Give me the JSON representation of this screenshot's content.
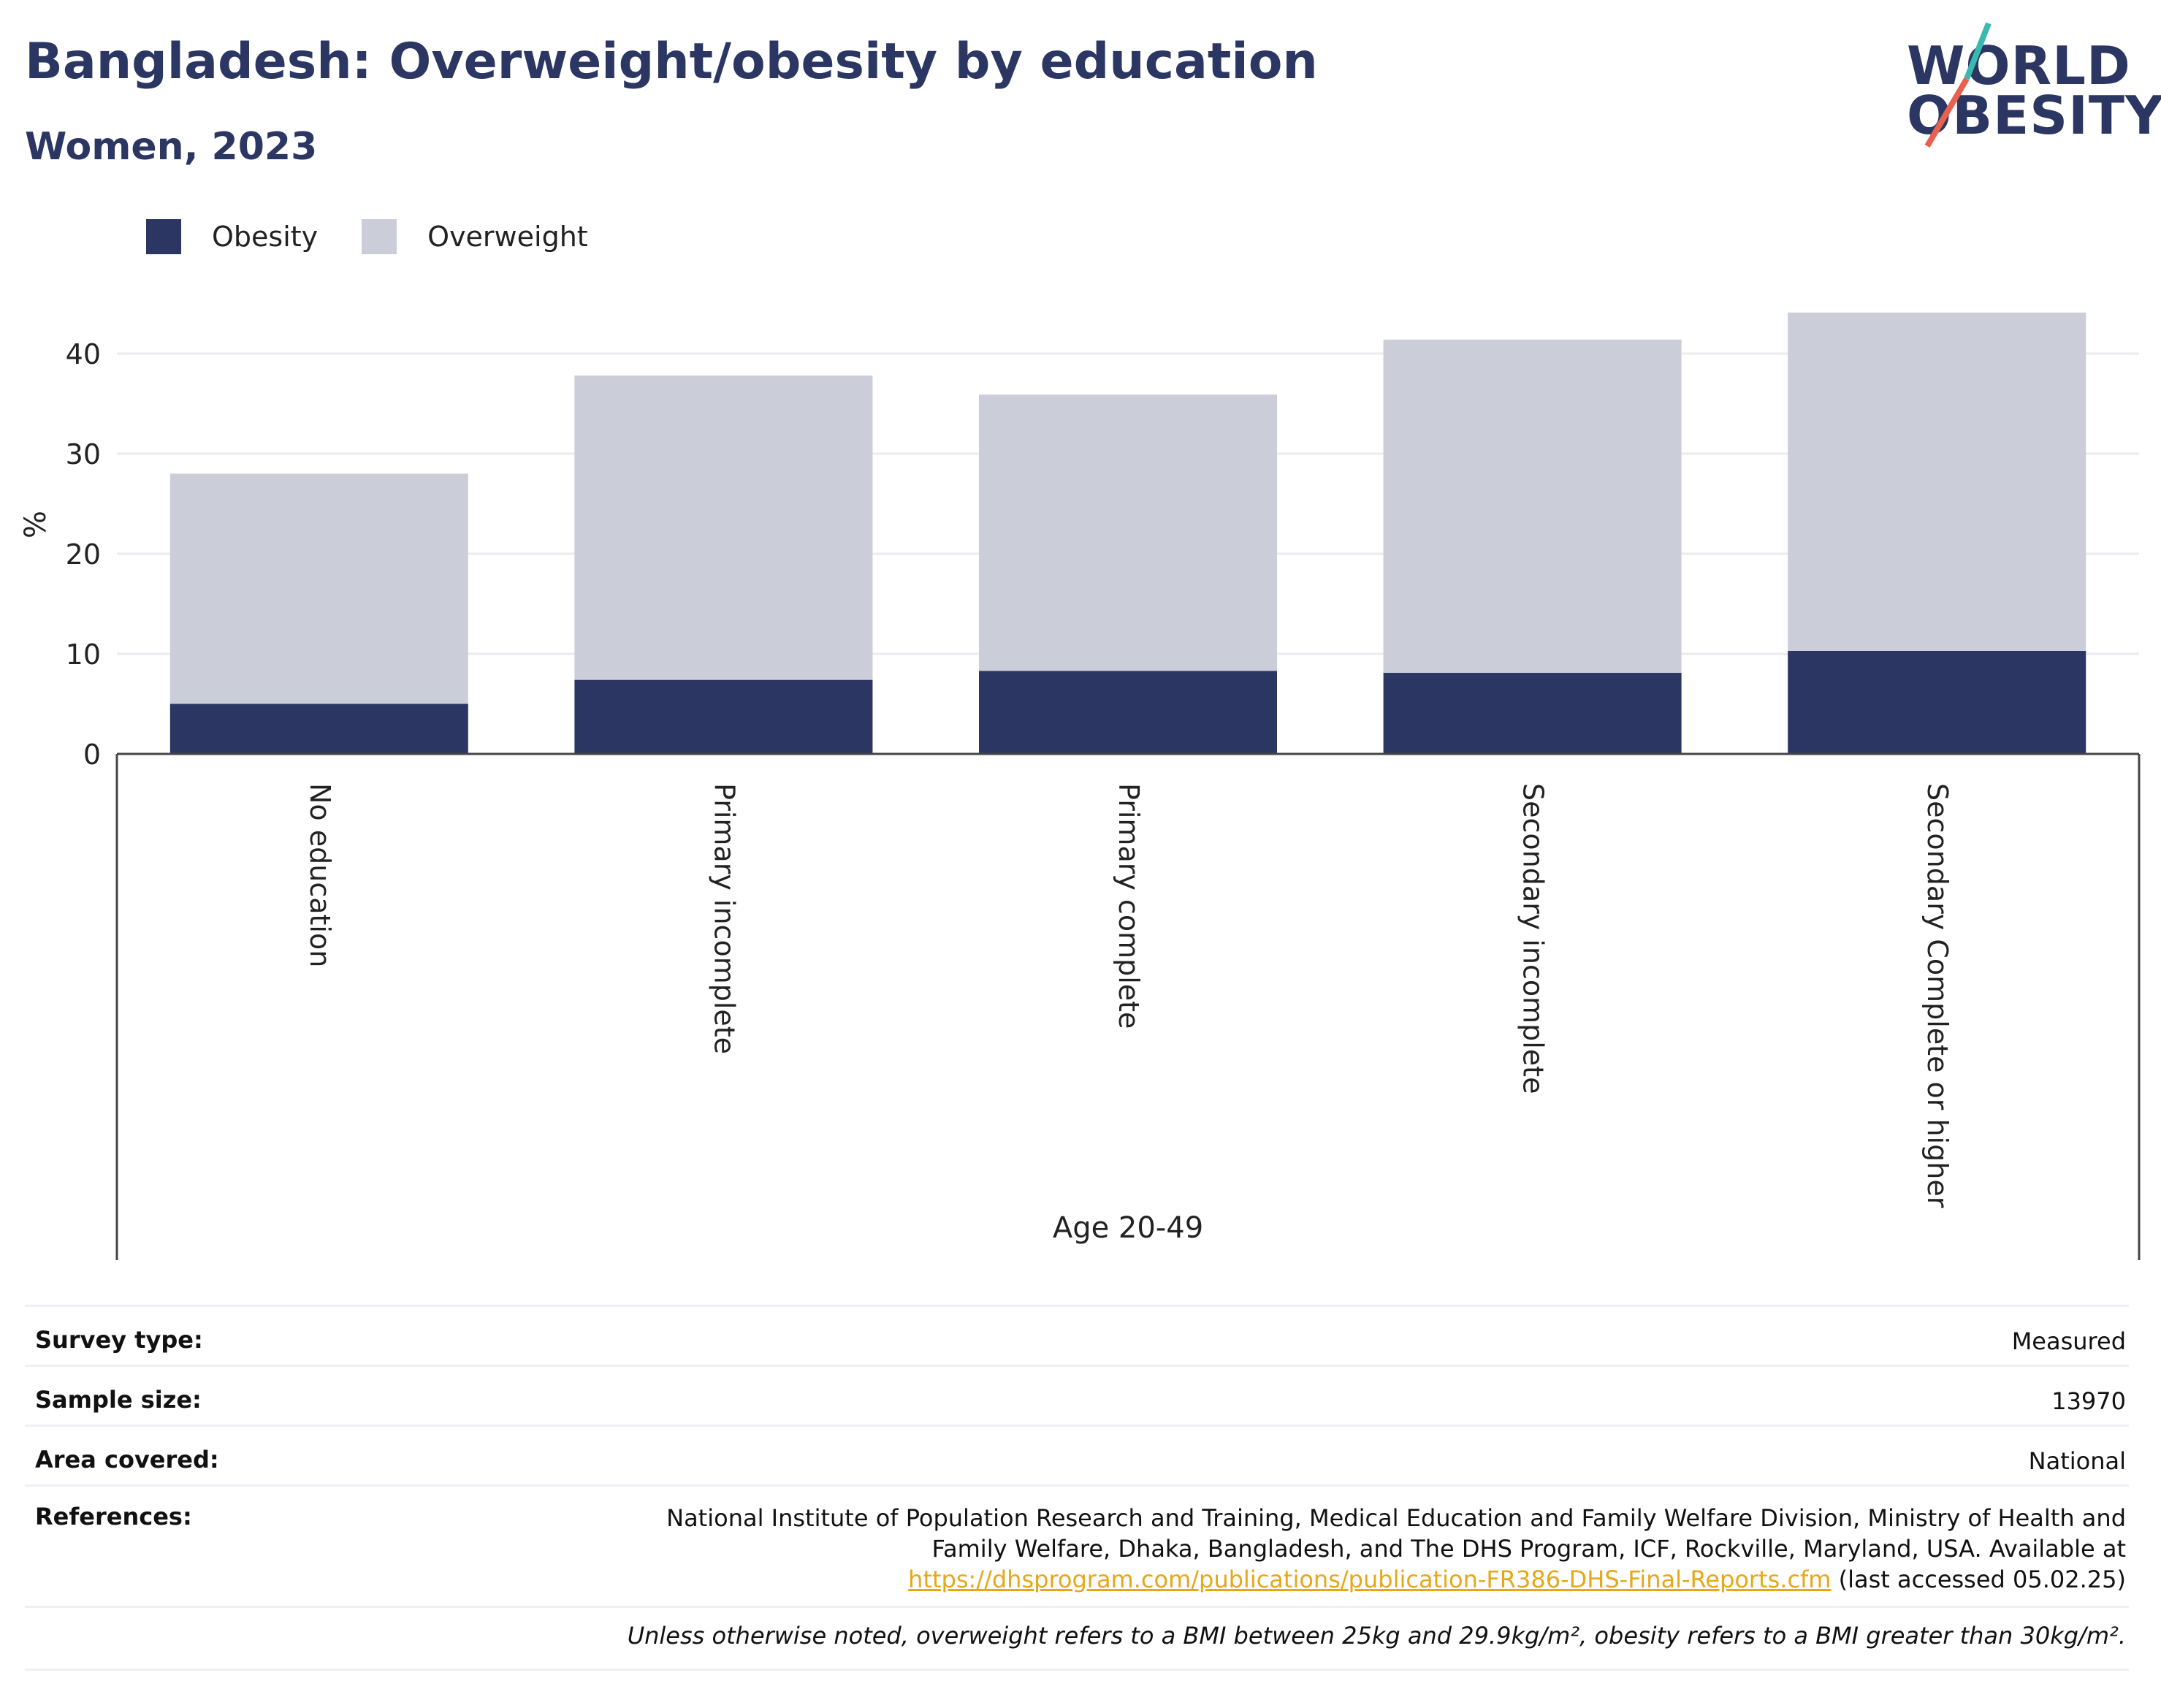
{
  "header": {
    "title": "Bangladesh: Overweight/obesity by education",
    "subtitle": "Women, 2023"
  },
  "logo": {
    "line1": "WORLD",
    "line2": "OBESITY"
  },
  "colors": {
    "obesity": "#2b3663",
    "overweight": "#cbcdd9",
    "title": "#2b3663",
    "link": "#e6a817",
    "logo_slash_top": "#3bb8b0",
    "logo_slash_bottom": "#e8614f"
  },
  "legend": [
    {
      "label": "Obesity",
      "color": "#2b3663"
    },
    {
      "label": "Overweight",
      "color": "#cbcdd9"
    }
  ],
  "chart_data": {
    "type": "bar",
    "stacked": true,
    "categories": [
      "No education",
      "Primary incomplete",
      "Primary complete",
      "Secondary incomplete",
      "Secondary Complete or higher"
    ],
    "series": [
      {
        "name": "Obesity",
        "values": [
          5.0,
          7.4,
          8.3,
          8.1,
          10.3
        ]
      },
      {
        "name": "Overweight",
        "values": [
          23.0,
          30.4,
          27.6,
          33.3,
          33.8
        ]
      }
    ],
    "ylabel": "%",
    "xlabel": "Age 20-49",
    "ylim": [
      0,
      45
    ],
    "yticks": [
      0,
      10,
      20,
      30,
      40
    ],
    "grid": true,
    "legend_position": "top-left"
  },
  "table": {
    "survey_type": {
      "label": "Survey type:",
      "value": "Measured"
    },
    "sample_size": {
      "label": "Sample size:",
      "value": "13970"
    },
    "area_covered": {
      "label": "Area covered:",
      "value": "National"
    },
    "references": {
      "label": "References:",
      "text": "National Institute of Population Research and Training, Medical Education and Family Welfare Division, Ministry of Health and Family Welfare, Dhaka, Bangladesh, and The DHS Program, ICF, Rockville, Maryland, USA. Available at",
      "link": "https://dhsprogram.com/publications/publication-FR386-DHS-Final-Reports.cfm",
      "suffix": "(last accessed 05.02.25)"
    }
  },
  "footnote": "Unless otherwise noted, overweight refers to a BMI between 25kg and 29.9kg/m², obesity refers to a BMI greater than 30kg/m²."
}
